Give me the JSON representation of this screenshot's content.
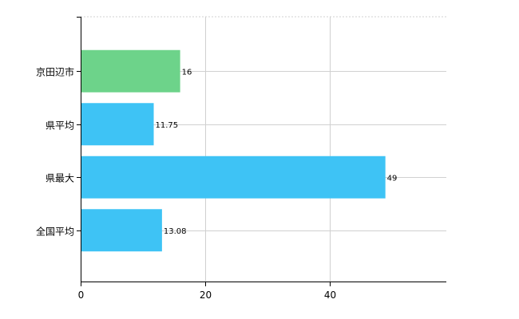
{
  "chart_data": {
    "type": "bar",
    "orientation": "horizontal",
    "categories": [
      "京田辺市",
      "県平均",
      "県最大",
      "全国平均"
    ],
    "values": [
      16,
      11.75,
      49,
      13.08
    ],
    "value_labels": [
      "16",
      "11.75",
      "49",
      "13.08"
    ],
    "highlight_index": 0,
    "colors": {
      "highlight": "#6dd38a",
      "default": "#3ec3f5",
      "grid": "#d0d0d0",
      "axis": "#000000"
    },
    "x_ticks": [
      {
        "value": 0,
        "label": "0"
      },
      {
        "value": 20,
        "label": "20"
      },
      {
        "value": 40,
        "label": "40"
      }
    ],
    "xlim": [
      0,
      58.8
    ],
    "grid": true,
    "title": "",
    "xlabel": "",
    "ylabel": ""
  }
}
